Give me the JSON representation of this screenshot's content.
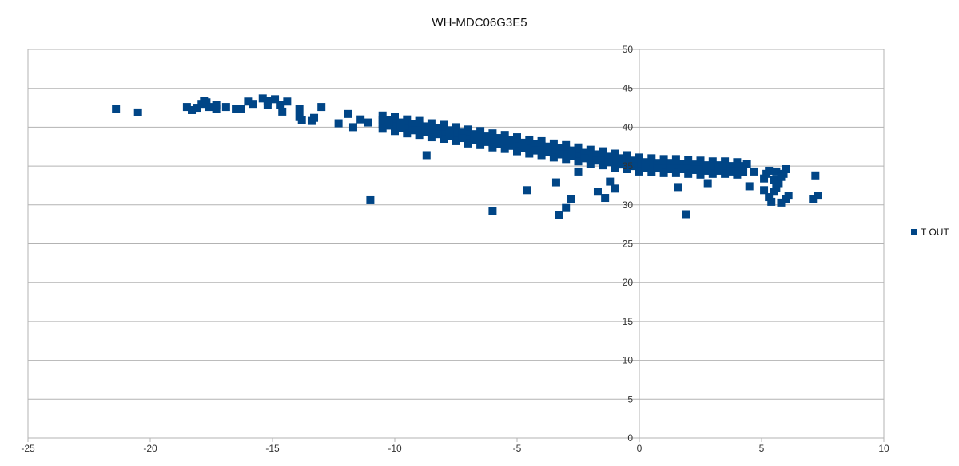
{
  "chart_data": {
    "type": "scatter",
    "title": "WH-MDC06G3E5",
    "xlabel": "",
    "ylabel": "",
    "xlim": [
      -25,
      10
    ],
    "ylim": [
      0,
      50
    ],
    "x_ticks": [
      -25,
      -20,
      -15,
      -10,
      -5,
      0,
      5,
      10
    ],
    "y_ticks": [
      0,
      5,
      10,
      15,
      20,
      25,
      30,
      35,
      40,
      45,
      50
    ],
    "grid": "horizontal",
    "legend_position": "right",
    "series": [
      {
        "name": "T OUT",
        "color": "#004586",
        "points": [
          [
            -21.4,
            42.3
          ],
          [
            -20.5,
            41.9
          ],
          [
            -18.5,
            42.6
          ],
          [
            -18.3,
            42.2
          ],
          [
            -18.1,
            42.5
          ],
          [
            -17.9,
            43.0
          ],
          [
            -17.8,
            43.4
          ],
          [
            -17.7,
            43.2
          ],
          [
            -17.6,
            42.6
          ],
          [
            -17.3,
            42.9
          ],
          [
            -17.3,
            42.4
          ],
          [
            -16.9,
            42.6
          ],
          [
            -16.5,
            42.4
          ],
          [
            -16.3,
            42.4
          ],
          [
            -16.0,
            43.3
          ],
          [
            -15.8,
            43.0
          ],
          [
            -15.4,
            43.7
          ],
          [
            -15.2,
            43.4
          ],
          [
            -15.2,
            42.9
          ],
          [
            -14.9,
            43.6
          ],
          [
            -14.7,
            42.9
          ],
          [
            -14.6,
            42.0
          ],
          [
            -14.4,
            43.3
          ],
          [
            -13.9,
            42.3
          ],
          [
            -13.9,
            41.3
          ],
          [
            -13.8,
            40.9
          ],
          [
            -13.4,
            40.8
          ],
          [
            -13.3,
            41.2
          ],
          [
            -13.0,
            42.6
          ],
          [
            -12.3,
            40.5
          ],
          [
            -11.9,
            41.7
          ],
          [
            -11.7,
            40.0
          ],
          [
            -11.4,
            41.0
          ],
          [
            -11.1,
            40.6
          ],
          [
            -11.0,
            30.6
          ],
          [
            -10.5,
            41.5
          ],
          [
            -10.5,
            40.9
          ],
          [
            -10.5,
            40.4
          ],
          [
            -10.5,
            39.8
          ],
          [
            -10,
            41.3
          ],
          [
            -10,
            40.7
          ],
          [
            -10,
            40.1
          ],
          [
            -10,
            39.5
          ],
          [
            -9.5,
            41.0
          ],
          [
            -9.5,
            40.4
          ],
          [
            -9.5,
            39.8
          ],
          [
            -9.5,
            39.2
          ],
          [
            -9,
            40.8
          ],
          [
            -9,
            40.2
          ],
          [
            -9,
            39.6
          ],
          [
            -9,
            39.0
          ],
          [
            -8.5,
            40.5
          ],
          [
            -8.5,
            39.9
          ],
          [
            -8.5,
            39.3
          ],
          [
            -8.5,
            38.7
          ],
          [
            -8,
            40.3
          ],
          [
            -8,
            39.7
          ],
          [
            -8,
            39.1
          ],
          [
            -8,
            38.5
          ],
          [
            -7.5,
            40.0
          ],
          [
            -7.5,
            39.4
          ],
          [
            -7.5,
            38.8
          ],
          [
            -7.5,
            38.2
          ],
          [
            -7,
            39.7
          ],
          [
            -7,
            39.1
          ],
          [
            -7,
            38.5
          ],
          [
            -7,
            37.9
          ],
          [
            -6.5,
            39.5
          ],
          [
            -6.5,
            38.9
          ],
          [
            -6.5,
            38.3
          ],
          [
            -6.5,
            37.7
          ],
          [
            -6,
            39.2
          ],
          [
            -6,
            38.6
          ],
          [
            -6,
            38.0
          ],
          [
            -6,
            37.4
          ],
          [
            -5.5,
            39.0
          ],
          [
            -5.5,
            38.4
          ],
          [
            -5.5,
            37.8
          ],
          [
            -5.5,
            37.2
          ],
          [
            -5,
            38.7
          ],
          [
            -5,
            38.1
          ],
          [
            -5,
            37.5
          ],
          [
            -5,
            36.9
          ],
          [
            -4.5,
            38.4
          ],
          [
            -4.5,
            37.8
          ],
          [
            -4.5,
            37.2
          ],
          [
            -4.5,
            36.6
          ],
          [
            -4,
            38.2
          ],
          [
            -4,
            37.6
          ],
          [
            -4,
            37.0
          ],
          [
            -4,
            36.4
          ],
          [
            -3.5,
            37.9
          ],
          [
            -3.5,
            37.3
          ],
          [
            -3.5,
            36.7
          ],
          [
            -3.5,
            36.1
          ],
          [
            -3,
            37.7
          ],
          [
            -3,
            37.1
          ],
          [
            -3,
            36.5
          ],
          [
            -3,
            35.9
          ],
          [
            -2.5,
            37.4
          ],
          [
            -2.5,
            36.8
          ],
          [
            -2.5,
            36.2
          ],
          [
            -2.5,
            35.6
          ],
          [
            -2,
            37.1
          ],
          [
            -2,
            36.5
          ],
          [
            -2,
            35.9
          ],
          [
            -2,
            35.3
          ],
          [
            -1.5,
            36.9
          ],
          [
            -1.5,
            36.3
          ],
          [
            -1.5,
            35.7
          ],
          [
            -1.5,
            35.1
          ],
          [
            -1,
            36.6
          ],
          [
            -1,
            36.0
          ],
          [
            -1,
            35.4
          ],
          [
            -1,
            34.8
          ],
          [
            -0.5,
            36.4
          ],
          [
            -0.5,
            35.8
          ],
          [
            -0.5,
            35.2
          ],
          [
            -0.5,
            34.6
          ],
          [
            0,
            36.1
          ],
          [
            0,
            35.5
          ],
          [
            0,
            34.9
          ],
          [
            0,
            34.3
          ],
          [
            0.5,
            36.0
          ],
          [
            0.5,
            35.4
          ],
          [
            0.5,
            34.8
          ],
          [
            0.5,
            34.2
          ],
          [
            1,
            35.9
          ],
          [
            1,
            35.3
          ],
          [
            1,
            34.7
          ],
          [
            1,
            34.1
          ],
          [
            1.5,
            35.9
          ],
          [
            1.5,
            35.3
          ],
          [
            1.5,
            34.7
          ],
          [
            1.5,
            34.1
          ],
          [
            2,
            35.8
          ],
          [
            2,
            35.2
          ],
          [
            2,
            34.6
          ],
          [
            2,
            34.0
          ],
          [
            2.5,
            35.7
          ],
          [
            2.5,
            35.1
          ],
          [
            2.5,
            34.5
          ],
          [
            2.5,
            33.9
          ],
          [
            3,
            35.6
          ],
          [
            3,
            35.0
          ],
          [
            3,
            34.4
          ],
          [
            3,
            34.0
          ],
          [
            3.5,
            35.6
          ],
          [
            3.5,
            35.0
          ],
          [
            3.5,
            34.4
          ],
          [
            3.5,
            34.0
          ],
          [
            4,
            35.5
          ],
          [
            4,
            34.9
          ],
          [
            4,
            34.3
          ],
          [
            4,
            33.9
          ],
          [
            -10.25,
            40.9
          ],
          [
            -10.25,
            40.2
          ],
          [
            -9.75,
            40.6
          ],
          [
            -9.75,
            39.9
          ],
          [
            -9.25,
            40.4
          ],
          [
            -9.25,
            39.6
          ],
          [
            -8.75,
            40.1
          ],
          [
            -8.75,
            39.4
          ],
          [
            -8.25,
            39.9
          ],
          [
            -8.25,
            39.1
          ],
          [
            -7.75,
            39.6
          ],
          [
            -7.75,
            38.9
          ],
          [
            -7.25,
            39.3
          ],
          [
            -7.25,
            38.6
          ],
          [
            -6.75,
            39.1
          ],
          [
            -6.75,
            38.3
          ],
          [
            -6.25,
            38.8
          ],
          [
            -6.25,
            38.1
          ],
          [
            -5.75,
            38.6
          ],
          [
            -5.75,
            37.8
          ],
          [
            -5.25,
            38.3
          ],
          [
            -5.25,
            37.6
          ],
          [
            -4.75,
            38.0
          ],
          [
            -4.75,
            37.3
          ],
          [
            -4.25,
            37.8
          ],
          [
            -4.25,
            37.0
          ],
          [
            -3.75,
            37.5
          ],
          [
            -3.75,
            36.8
          ],
          [
            -3.25,
            37.3
          ],
          [
            -3.25,
            36.5
          ],
          [
            -2.75,
            37.0
          ],
          [
            -2.75,
            36.3
          ],
          [
            -2.25,
            36.7
          ],
          [
            -2.25,
            36.0
          ],
          [
            -1.75,
            36.5
          ],
          [
            -1.75,
            35.7
          ],
          [
            -1.25,
            36.2
          ],
          [
            -1.25,
            35.5
          ],
          [
            -0.75,
            36.0
          ],
          [
            -0.75,
            35.2
          ],
          [
            -0.25,
            35.7
          ],
          [
            -0.25,
            35.0
          ],
          [
            0.25,
            35.5
          ],
          [
            0.25,
            34.8
          ],
          [
            0.75,
            35.4
          ],
          [
            0.75,
            34.7
          ],
          [
            1.25,
            35.4
          ],
          [
            1.25,
            34.6
          ],
          [
            1.75,
            35.3
          ],
          [
            1.75,
            34.6
          ],
          [
            2.25,
            35.2
          ],
          [
            2.25,
            34.5
          ],
          [
            2.75,
            35.1
          ],
          [
            2.75,
            34.4
          ],
          [
            3.25,
            35.1
          ],
          [
            3.25,
            34.4
          ],
          [
            3.75,
            35.0
          ],
          [
            3.75,
            34.3
          ],
          [
            4.25,
            35.0
          ],
          [
            4.25,
            34.2
          ],
          [
            -8.7,
            36.4
          ],
          [
            -6.0,
            29.2
          ],
          [
            -4.6,
            31.9
          ],
          [
            -3.4,
            32.9
          ],
          [
            -3.3,
            28.7
          ],
          [
            -3.0,
            29.6
          ],
          [
            -2.8,
            30.8
          ],
          [
            -2.5,
            34.3
          ],
          [
            -1.7,
            31.7
          ],
          [
            -1.4,
            30.9
          ],
          [
            -1.0,
            32.1
          ],
          [
            -1.2,
            33.0
          ],
          [
            1.6,
            32.3
          ],
          [
            1.9,
            28.8
          ],
          [
            2.8,
            32.8
          ],
          [
            4.5,
            32.4
          ],
          [
            4.7,
            34.3
          ],
          [
            4.4,
            35.3
          ],
          [
            5.1,
            33.4
          ],
          [
            5.1,
            31.9
          ],
          [
            5.3,
            31.0
          ],
          [
            5.4,
            30.4
          ],
          [
            5.5,
            31.7
          ],
          [
            5.6,
            34.3
          ],
          [
            5.7,
            32.8
          ],
          [
            5.9,
            34.0
          ],
          [
            6.0,
            30.7
          ],
          [
            6.1,
            31.2
          ],
          [
            5.8,
            30.3
          ],
          [
            5.3,
            34.4
          ],
          [
            6.0,
            34.6
          ],
          [
            5.2,
            34.0
          ],
          [
            5.5,
            33.2
          ],
          [
            5.8,
            33.6
          ],
          [
            5.6,
            32.2
          ],
          [
            7.1,
            30.8
          ],
          [
            7.3,
            31.2
          ],
          [
            7.2,
            33.8
          ]
        ]
      }
    ]
  }
}
